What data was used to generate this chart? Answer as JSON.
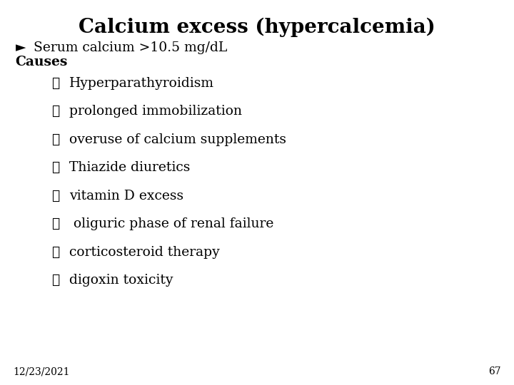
{
  "title": "Calcium excess (hypercalcemia)",
  "title_fontsize": 20,
  "background_color": "#ffffff",
  "text_color": "#000000",
  "subtitle_arrow": "►",
  "subtitle_text": "Serum calcium >10.5 mg/dL",
  "subtitle_fontsize": 13.5,
  "causes_label": "Causes",
  "causes_fontsize": 13.5,
  "bullet_symbol": "✓",
  "bullet_items": [
    "Hyperparathyroidism",
    "prolonged immobilization",
    "overuse of calcium supplements",
    "Thiazide diuretics",
    "vitamin D excess",
    " oliguric phase of renal failure",
    "corticosteroid therapy",
    "digoxin toxicity"
  ],
  "bullet_fontsize": 13.5,
  "footer_date": "12/23/2021",
  "footer_page": "67",
  "footer_fontsize": 10,
  "font_family": "serif"
}
